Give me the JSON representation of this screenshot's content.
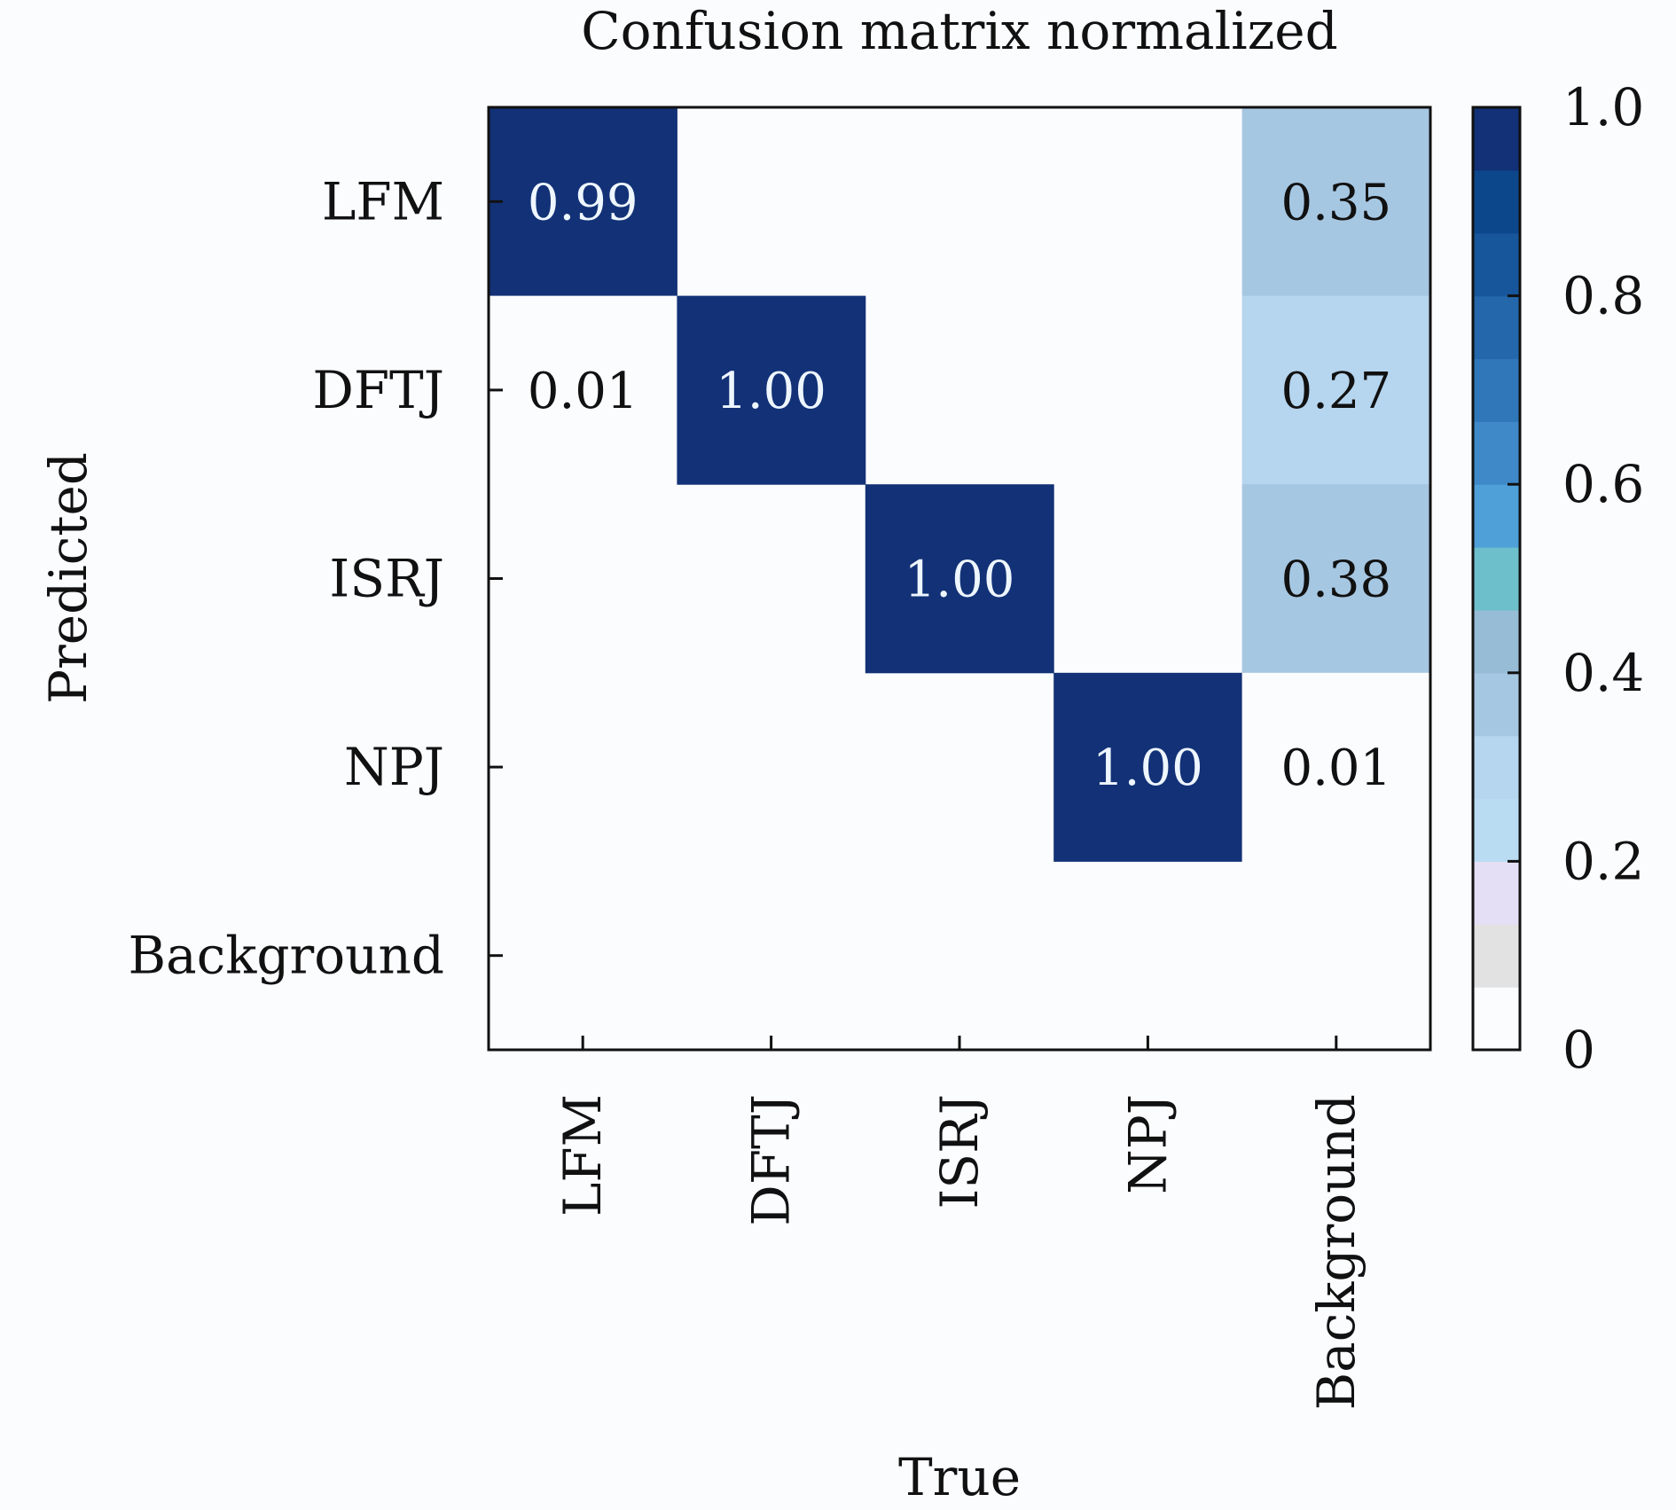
{
  "chart_data": {
    "type": "heatmap",
    "title": "Confusion matrix normalized",
    "xlabel": "True",
    "ylabel": "Predicted",
    "x_categories": [
      "LFM",
      "DFTJ",
      "ISRJ",
      "NPJ",
      "Background"
    ],
    "y_categories": [
      "LFM",
      "DFTJ",
      "ISRJ",
      "NPJ",
      "Background"
    ],
    "values": [
      [
        0.99,
        null,
        null,
        null,
        0.35
      ],
      [
        0.01,
        1.0,
        null,
        null,
        0.27
      ],
      [
        null,
        null,
        1.0,
        null,
        0.38
      ],
      [
        null,
        null,
        null,
        1.0,
        0.01
      ],
      [
        null,
        null,
        null,
        null,
        null
      ]
    ],
    "cell_labels": [
      [
        "0.99",
        "",
        "",
        "",
        "0.35"
      ],
      [
        "0.01",
        "1.00",
        "",
        "",
        "0.27"
      ],
      [
        "",
        "",
        "1.00",
        "",
        "0.38"
      ],
      [
        "",
        "",
        "",
        "1.00",
        "0.01"
      ],
      [
        "",
        "",
        "",
        "",
        ""
      ]
    ],
    "colorbar": {
      "range": [
        0,
        1.0
      ],
      "ticks": [
        0,
        0.2,
        0.4,
        0.6,
        0.8,
        1.0
      ],
      "tick_labels": [
        "0",
        "0.2",
        "0.4",
        "0.6",
        "0.8",
        "1.0"
      ],
      "colors": [
        "#fbfcfe",
        "#e2e2e2",
        "#e4dff5",
        "#b9dcf3",
        "#b6d5ee",
        "#a6c7e2",
        "#97bcd6",
        "#6ebfcc",
        "#4f9fd9",
        "#3f89c9",
        "#2f77b9",
        "#2467ab",
        "#17569b",
        "#0d478b",
        "#123176"
      ]
    }
  }
}
